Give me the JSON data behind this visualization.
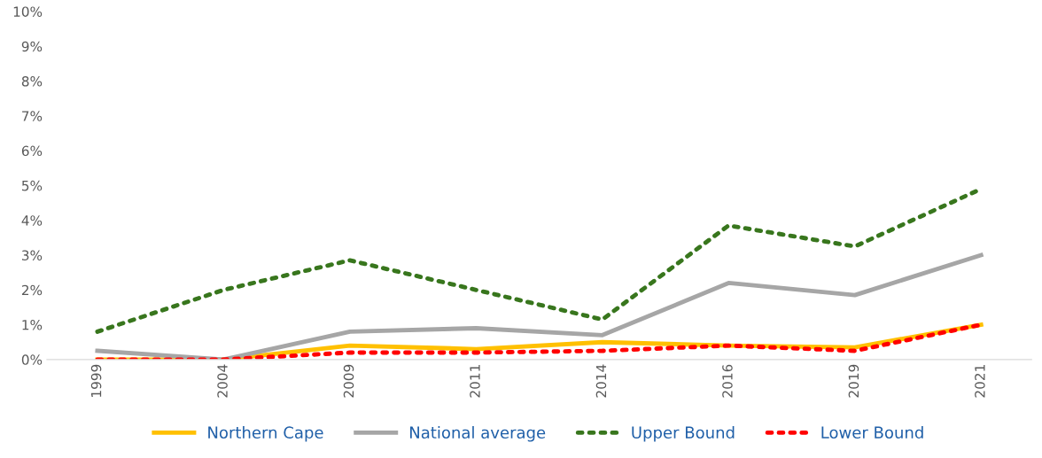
{
  "chart_data": {
    "type": "line",
    "categories": [
      "1999",
      "2004",
      "2009",
      "2011",
      "2014",
      "2016",
      "2019",
      "2021"
    ],
    "series": [
      {
        "name": "Northern Cape",
        "color": "#ffc000",
        "values": [
          0,
          0,
          0.4,
          0.3,
          0.5,
          0.4,
          0.35,
          1.0
        ],
        "line_style": "solid"
      },
      {
        "name": "National average",
        "color": "#a6a6a6",
        "values": [
          0.25,
          0,
          0.8,
          0.9,
          0.7,
          2.2,
          1.85,
          3.0
        ],
        "line_style": "solid"
      },
      {
        "name": "Upper Bound",
        "color": "#38761d",
        "values": [
          0.8,
          2.0,
          2.85,
          2.0,
          1.15,
          3.85,
          3.25,
          4.9
        ],
        "line_style": "dotted"
      },
      {
        "name": "Lower Bound",
        "color": "#ff0000",
        "values": [
          0,
          0,
          0.2,
          0.2,
          0.25,
          0.4,
          0.25,
          1.0
        ],
        "line_style": "dotted"
      }
    ],
    "ylim": [
      0,
      10
    ],
    "yticks": [
      {
        "value": 0,
        "label": "0%"
      },
      {
        "value": 1,
        "label": "1%"
      },
      {
        "value": 2,
        "label": "2%"
      },
      {
        "value": 3,
        "label": "3%"
      },
      {
        "value": 4,
        "label": "4%"
      },
      {
        "value": 5,
        "label": "5%"
      },
      {
        "value": 6,
        "label": "6%"
      },
      {
        "value": 7,
        "label": "7%"
      },
      {
        "value": 8,
        "label": "8%"
      },
      {
        "value": 9,
        "label": "9%"
      },
      {
        "value": 10,
        "label": "10%"
      }
    ],
    "grid": false,
    "legend": "bottom",
    "marker": "none"
  }
}
